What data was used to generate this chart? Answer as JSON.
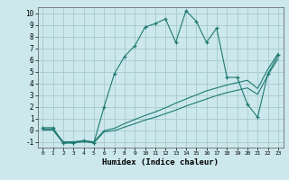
{
  "xlabel": "Humidex (Indice chaleur)",
  "bg_color": "#cce8ec",
  "grid_color": "#aacdd4",
  "line_color": "#1e7a70",
  "xlim": [
    -0.5,
    23.5
  ],
  "ylim": [
    -1.5,
    10.5
  ],
  "xticks": [
    0,
    1,
    2,
    3,
    4,
    5,
    6,
    7,
    8,
    9,
    10,
    11,
    12,
    13,
    14,
    15,
    16,
    17,
    18,
    19,
    20,
    21,
    22,
    23
  ],
  "yticks": [
    -1,
    0,
    1,
    2,
    3,
    4,
    5,
    6,
    7,
    8,
    9,
    10
  ],
  "line1_x": [
    0,
    1,
    2,
    3,
    4,
    5,
    6,
    7,
    8,
    9,
    10,
    11,
    12,
    13,
    14,
    15,
    16,
    17,
    18,
    19,
    20,
    21,
    22,
    23
  ],
  "line1_y": [
    0.2,
    0.2,
    -1.1,
    -1.1,
    -0.9,
    -1.1,
    2.0,
    4.8,
    6.3,
    7.2,
    8.8,
    9.1,
    9.5,
    7.5,
    10.2,
    9.3,
    7.5,
    8.7,
    4.5,
    4.5,
    2.2,
    1.1,
    4.8,
    6.4
  ],
  "line2_x": [
    0,
    1,
    2,
    3,
    4,
    5,
    6,
    7,
    8,
    9,
    10,
    11,
    12,
    13,
    14,
    15,
    16,
    17,
    18,
    19,
    20,
    21,
    22,
    23
  ],
  "line2_y": [
    0.1,
    0.1,
    -1.0,
    -1.0,
    -0.9,
    -1.0,
    -0.05,
    0.15,
    0.55,
    0.9,
    1.25,
    1.55,
    1.9,
    2.3,
    2.65,
    3.0,
    3.35,
    3.6,
    3.85,
    4.05,
    4.25,
    3.55,
    5.2,
    6.55
  ],
  "line3_x": [
    0,
    1,
    2,
    3,
    4,
    5,
    6,
    7,
    8,
    9,
    10,
    11,
    12,
    13,
    14,
    15,
    16,
    17,
    18,
    19,
    20,
    21,
    22,
    23
  ],
  "line3_y": [
    0.0,
    0.0,
    -1.1,
    -1.1,
    -1.0,
    -1.1,
    -0.15,
    -0.05,
    0.25,
    0.55,
    0.85,
    1.1,
    1.4,
    1.7,
    2.05,
    2.35,
    2.65,
    2.95,
    3.2,
    3.4,
    3.6,
    3.05,
    4.7,
    6.1
  ]
}
